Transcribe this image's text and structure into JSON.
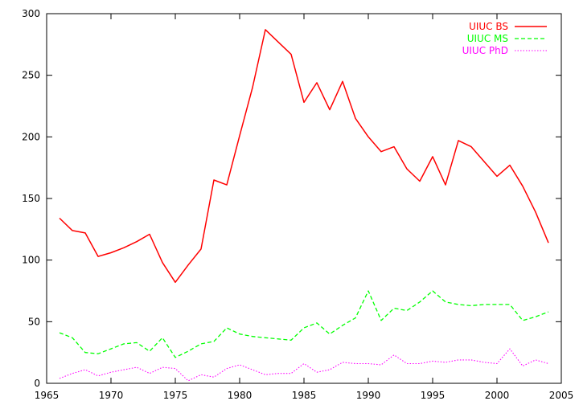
{
  "chart_data": {
    "type": "line",
    "title": "",
    "xlabel": "",
    "ylabel": "",
    "xlim": [
      1965,
      2005
    ],
    "ylim": [
      0,
      300
    ],
    "x_ticks": [
      1965,
      1970,
      1975,
      1980,
      1985,
      1990,
      1995,
      2000,
      2005
    ],
    "y_ticks": [
      0,
      50,
      100,
      150,
      200,
      250,
      300
    ],
    "grid": false,
    "legend_position": "top-right",
    "series": [
      {
        "name": "UIUC BS",
        "color": "#ff0000",
        "dash": "solid",
        "x": [
          1966,
          1967,
          1968,
          1969,
          1970,
          1971,
          1972,
          1973,
          1974,
          1975,
          1976,
          1977,
          1978,
          1979,
          1980,
          1981,
          1982,
          1983,
          1984,
          1985,
          1986,
          1987,
          1988,
          1989,
          1990,
          1991,
          1992,
          1993,
          1994,
          1995,
          1996,
          1997,
          1998,
          1999,
          2000,
          2001,
          2002,
          2003,
          2004
        ],
        "y": [
          134,
          124,
          122,
          103,
          106,
          110,
          115,
          121,
          98,
          82,
          96,
          109,
          165,
          161,
          201,
          240,
          287,
          277,
          267,
          228,
          244,
          222,
          245,
          215,
          200,
          188,
          192,
          174,
          164,
          184,
          161,
          197,
          192,
          180,
          168,
          177,
          160,
          139,
          114
        ]
      },
      {
        "name": "UIUC MS",
        "color": "#00ff00",
        "dash": "dashed",
        "x": [
          1966,
          1967,
          1968,
          1969,
          1970,
          1971,
          1972,
          1973,
          1974,
          1975,
          1976,
          1977,
          1978,
          1979,
          1980,
          1981,
          1982,
          1983,
          1984,
          1985,
          1986,
          1987,
          1988,
          1989,
          1990,
          1991,
          1992,
          1993,
          1994,
          1995,
          1996,
          1997,
          1998,
          1999,
          2000,
          2001,
          2002,
          2003,
          2004
        ],
        "y": [
          41,
          37,
          25,
          24,
          28,
          32,
          33,
          26,
          37,
          21,
          26,
          32,
          34,
          45,
          40,
          38,
          37,
          36,
          35,
          45,
          49,
          40,
          47,
          53,
          75,
          51,
          61,
          59,
          66,
          75,
          66,
          64,
          63,
          64,
          64,
          64,
          51,
          54,
          58
        ]
      },
      {
        "name": "UIUC PhD",
        "color": "#ff00ff",
        "dash": "dotted",
        "x": [
          1966,
          1967,
          1968,
          1969,
          1970,
          1971,
          1972,
          1973,
          1974,
          1975,
          1976,
          1977,
          1978,
          1979,
          1980,
          1981,
          1982,
          1983,
          1984,
          1985,
          1986,
          1987,
          1988,
          1989,
          1990,
          1991,
          1992,
          1993,
          1994,
          1995,
          1996,
          1997,
          1998,
          1999,
          2000,
          2001,
          2002,
          2003,
          2004
        ],
        "y": [
          4,
          8,
          11,
          6,
          9,
          11,
          13,
          8,
          13,
          12,
          2,
          7,
          5,
          12,
          15,
          11,
          7,
          8,
          8,
          16,
          9,
          11,
          17,
          16,
          16,
          15,
          23,
          16,
          16,
          18,
          17,
          19,
          19,
          17,
          16,
          28,
          14,
          19,
          16
        ]
      }
    ]
  }
}
